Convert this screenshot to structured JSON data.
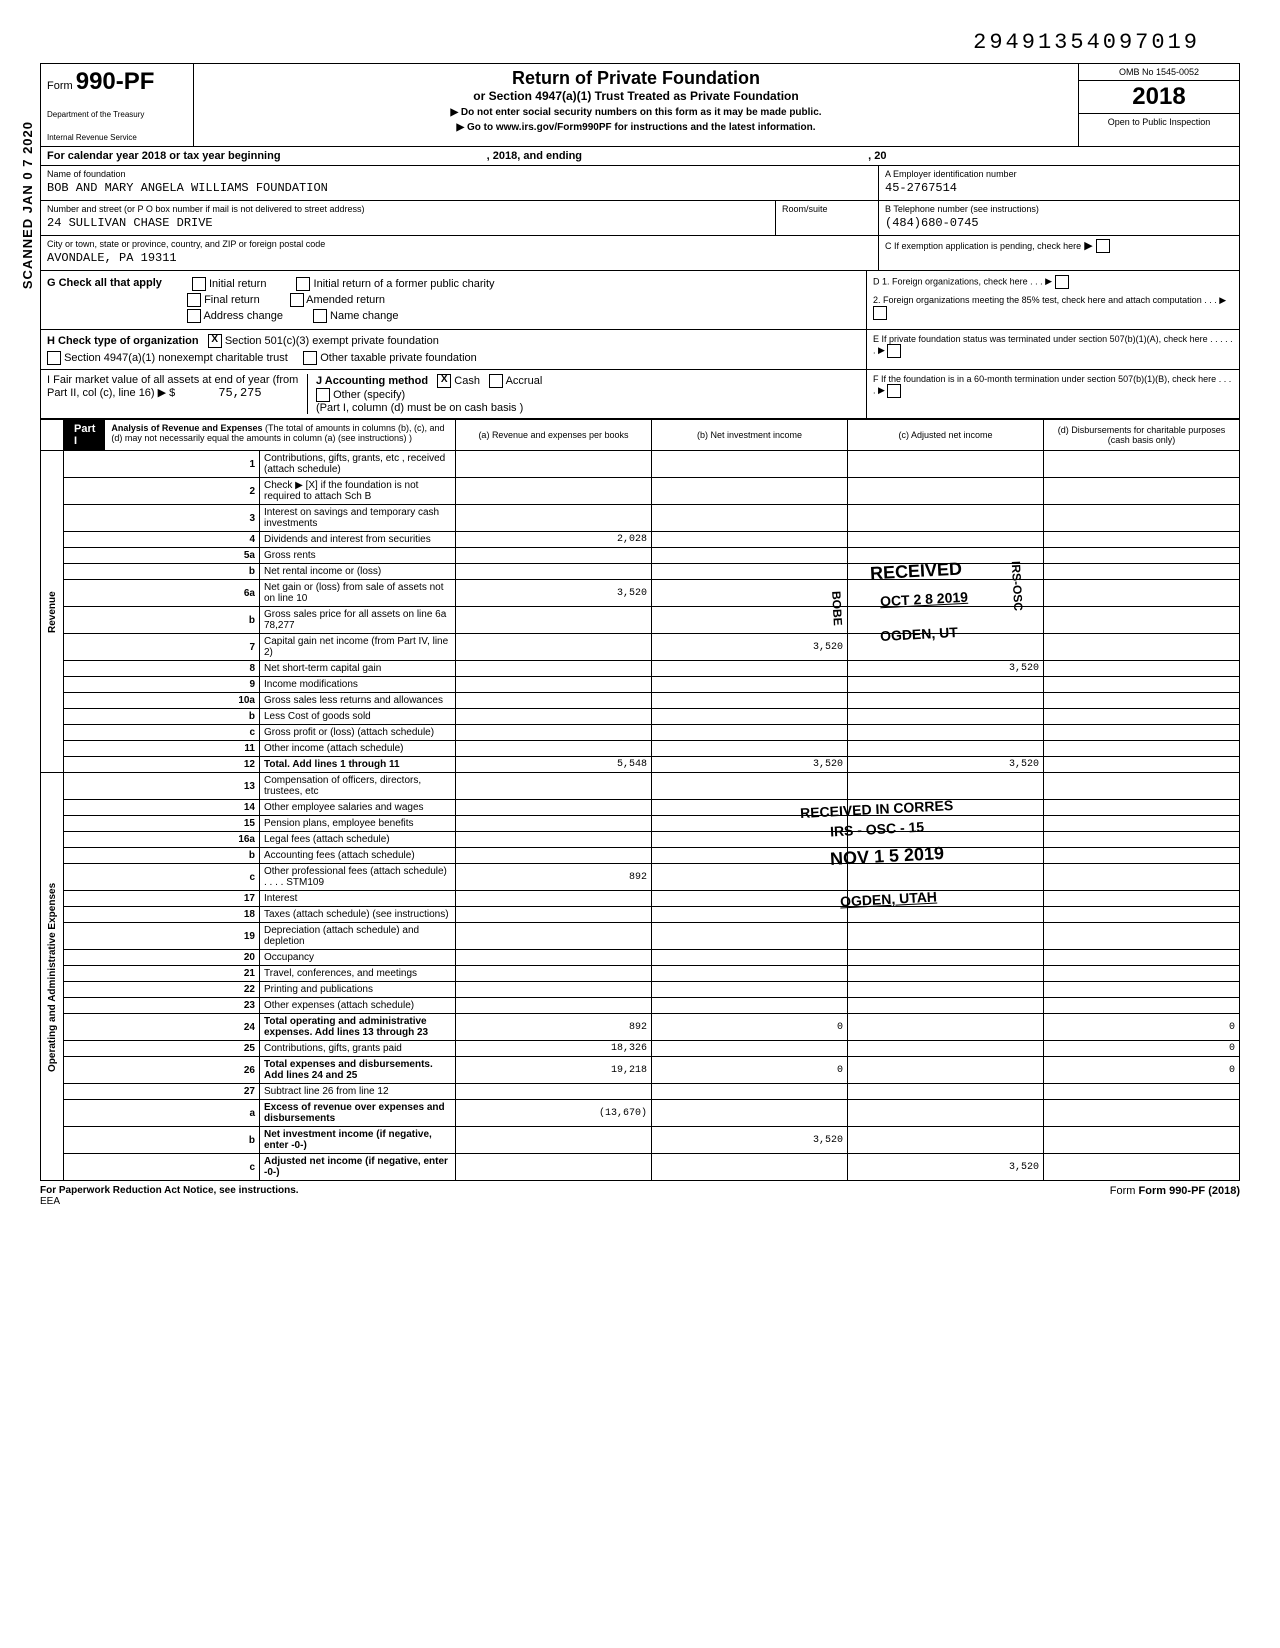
{
  "header_number": "29491354097019",
  "form_prefix": "Form",
  "form_number": "990-PF",
  "dept1": "Department of the Treasury",
  "dept2": "Internal Revenue Service",
  "title": "Return of Private Foundation",
  "subtitle": "or Section 4947(a)(1) Trust Treated as Private Foundation",
  "note1": "▶ Do not enter social security numbers on this form as it may be made public.",
  "note2": "▶ Go to www.irs.gov/Form990PF for instructions and the latest information.",
  "omb": "OMB No 1545-0052",
  "year": "2018",
  "inspection": "Open to Public Inspection",
  "cal_year": "For calendar year 2018 or tax year beginning",
  "cal_mid": ", 2018, and ending",
  "cal_end": ", 20",
  "name_label": "Name of foundation",
  "name_val": "BOB AND MARY ANGELA WILLIAMS FOUNDATION",
  "ein_label": "A Employer identification number",
  "ein_val": "45-2767514",
  "addr_label": "Number and street (or P O box number if mail is not delivered to street address)",
  "addr_val": "24 SULLIVAN CHASE DRIVE",
  "room_label": "Room/suite",
  "tel_label": "B Telephone number (see instructions)",
  "tel_val": "(484)680-0745",
  "city_label": "City or town, state or province, country, and ZIP or foreign postal code",
  "city_val": "AVONDALE, PA 19311",
  "c_label": "C  If exemption application is pending, check here",
  "g_label": "G  Check all that apply",
  "g_opts": [
    "Initial return",
    "Final return",
    "Address change",
    "Initial return of a former public charity",
    "Amended return",
    "Name change"
  ],
  "d_label": "D  1. Foreign organizations, check here",
  "d2_label": "2. Foreign organizations meeting the 85% test, check here and attach computation",
  "h_label": "H  Check type of organization",
  "h_opt1": "Section 501(c)(3) exempt private foundation",
  "h_opt2": "Section 4947(a)(1) nonexempt charitable trust",
  "h_opt3": "Other taxable private foundation",
  "e_label": "E  If private foundation status was terminated under section 507(b)(1)(A), check here",
  "i_label": "I   Fair market value of all assets at end of year (from Part II, col (c), line 16) ▶ $",
  "i_val": "75,275",
  "j_label": "J  Accounting method",
  "j_cash": "Cash",
  "j_accrual": "Accrual",
  "j_other": "Other (specify)",
  "j_note": "(Part I, column (d) must be on cash basis )",
  "f_label": "F  If the foundation is in a 60-month termination under section 507(b)(1)(B), check here",
  "part1_label": "Part I",
  "part1_title": "Analysis of Revenue and Expenses",
  "part1_note": "(The total of amounts in columns (b), (c), and (d) may not necessarily equal the amounts in column (a) (see instructions) )",
  "col_a": "(a) Revenue and expenses per books",
  "col_b": "(b) Net investment income",
  "col_c": "(c) Adjusted net income",
  "col_d": "(d) Disbursements for charitable purposes (cash basis only)",
  "side_scanned": "SCANNED JAN 0 7 2020",
  "side_rev": "Revenue",
  "side_exp": "Operating and Administrative Expenses",
  "rows": [
    {
      "n": "1",
      "d": "Contributions, gifts, grants, etc , received (attach schedule)",
      "a": "",
      "b": "",
      "c": "",
      "dd": ""
    },
    {
      "n": "2",
      "d": "Check ▶  [X]  if the foundation is not required to attach Sch B",
      "a": "",
      "b": "",
      "c": "",
      "dd": ""
    },
    {
      "n": "3",
      "d": "Interest on savings and temporary cash investments",
      "a": "",
      "b": "",
      "c": "",
      "dd": ""
    },
    {
      "n": "4",
      "d": "Dividends and interest from securities",
      "a": "2,028",
      "b": "",
      "c": "",
      "dd": ""
    },
    {
      "n": "5a",
      "d": "Gross rents",
      "a": "",
      "b": "",
      "c": "",
      "dd": ""
    },
    {
      "n": "b",
      "d": "Net rental income or (loss)",
      "a": "",
      "b": "",
      "c": "",
      "dd": ""
    },
    {
      "n": "6a",
      "d": "Net gain or (loss) from sale of assets not on line 10",
      "a": "3,520",
      "b": "",
      "c": "",
      "dd": ""
    },
    {
      "n": "b",
      "d": "Gross sales price for all assets on line 6a            78,277",
      "a": "",
      "b": "",
      "c": "",
      "dd": ""
    },
    {
      "n": "7",
      "d": "Capital gain net income (from Part IV, line 2)",
      "a": "",
      "b": "3,520",
      "c": "",
      "dd": ""
    },
    {
      "n": "8",
      "d": "Net short-term capital gain",
      "a": "",
      "b": "",
      "c": "3,520",
      "dd": ""
    },
    {
      "n": "9",
      "d": "Income modifications",
      "a": "",
      "b": "",
      "c": "",
      "dd": ""
    },
    {
      "n": "10a",
      "d": "Gross sales less returns and allowances",
      "a": "",
      "b": "",
      "c": "",
      "dd": ""
    },
    {
      "n": "b",
      "d": "Less Cost of goods sold",
      "a": "",
      "b": "",
      "c": "",
      "dd": ""
    },
    {
      "n": "c",
      "d": "Gross profit or (loss) (attach schedule)",
      "a": "",
      "b": "",
      "c": "",
      "dd": ""
    },
    {
      "n": "11",
      "d": "Other income (attach schedule)",
      "a": "",
      "b": "",
      "c": "",
      "dd": ""
    },
    {
      "n": "12",
      "d": "Total. Add lines 1 through 11",
      "a": "5,548",
      "b": "3,520",
      "c": "3,520",
      "dd": "",
      "bold": true
    },
    {
      "n": "13",
      "d": "Compensation of officers, directors, trustees, etc",
      "a": "",
      "b": "",
      "c": "",
      "dd": ""
    },
    {
      "n": "14",
      "d": "Other employee salaries and wages",
      "a": "",
      "b": "",
      "c": "",
      "dd": ""
    },
    {
      "n": "15",
      "d": "Pension plans, employee benefits",
      "a": "",
      "b": "",
      "c": "",
      "dd": ""
    },
    {
      "n": "16a",
      "d": "Legal fees (attach schedule)",
      "a": "",
      "b": "",
      "c": "",
      "dd": ""
    },
    {
      "n": "b",
      "d": "Accounting fees (attach schedule)",
      "a": "",
      "b": "",
      "c": "",
      "dd": ""
    },
    {
      "n": "c",
      "d": "Other professional fees (attach schedule)  . . . . STM109",
      "a": "892",
      "b": "",
      "c": "",
      "dd": ""
    },
    {
      "n": "17",
      "d": "Interest",
      "a": "",
      "b": "",
      "c": "",
      "dd": ""
    },
    {
      "n": "18",
      "d": "Taxes (attach schedule) (see instructions)",
      "a": "",
      "b": "",
      "c": "",
      "dd": ""
    },
    {
      "n": "19",
      "d": "Depreciation (attach schedule) and depletion",
      "a": "",
      "b": "",
      "c": "",
      "dd": ""
    },
    {
      "n": "20",
      "d": "Occupancy",
      "a": "",
      "b": "",
      "c": "",
      "dd": ""
    },
    {
      "n": "21",
      "d": "Travel, conferences, and meetings",
      "a": "",
      "b": "",
      "c": "",
      "dd": ""
    },
    {
      "n": "22",
      "d": "Printing and publications",
      "a": "",
      "b": "",
      "c": "",
      "dd": ""
    },
    {
      "n": "23",
      "d": "Other expenses (attach schedule)",
      "a": "",
      "b": "",
      "c": "",
      "dd": ""
    },
    {
      "n": "24",
      "d": "Total operating and administrative expenses. Add lines 13 through 23",
      "a": "892",
      "b": "0",
      "c": "",
      "dd": "0",
      "bold": true
    },
    {
      "n": "25",
      "d": "Contributions, gifts, grants paid",
      "a": "18,326",
      "b": "",
      "c": "",
      "dd": "0"
    },
    {
      "n": "26",
      "d": "Total expenses and disbursements. Add lines 24 and 25",
      "a": "19,218",
      "b": "0",
      "c": "",
      "dd": "0",
      "bold": true
    },
    {
      "n": "27",
      "d": "Subtract line 26 from line 12",
      "a": "",
      "b": "",
      "c": "",
      "dd": ""
    },
    {
      "n": "a",
      "d": "Excess of revenue over expenses and disbursements",
      "a": "(13,670)",
      "b": "",
      "c": "",
      "dd": "",
      "bold": true
    },
    {
      "n": "b",
      "d": "Net investment income (if negative, enter -0-)",
      "a": "",
      "b": "3,520",
      "c": "",
      "dd": "",
      "bold": true
    },
    {
      "n": "c",
      "d": "Adjusted net income (if negative, enter -0-)",
      "a": "",
      "b": "",
      "c": "3,520",
      "dd": "",
      "bold": true
    }
  ],
  "stamp_received": "RECEIVED",
  "stamp_date1": "OCT 2 8 2019",
  "stamp_ogden1": "OGDEN, UT",
  "stamp_bobe": "BOBE",
  "stamp_irs_osc": "IRS-OSC",
  "stamp_rec2": "RECEIVED IN CORRES",
  "stamp_irs2": "IRS - OSC - 15",
  "stamp_date2": "NOV 1 5 2019",
  "stamp_ogden2": "OGDEN, UTAH",
  "footer_left": "For Paperwork Reduction Act Notice, see instructions.",
  "footer_eea": "EEA",
  "footer_right": "Form 990-PF (2018)"
}
